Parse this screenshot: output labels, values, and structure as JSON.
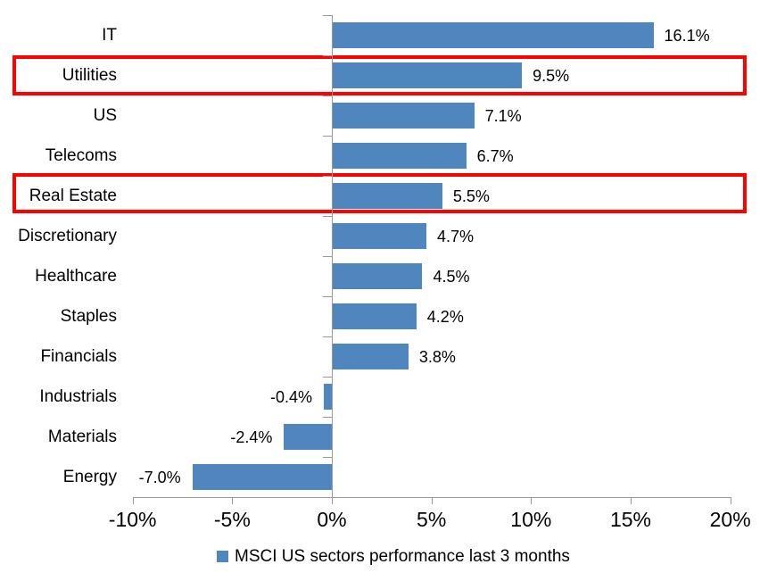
{
  "chart_data": {
    "type": "bar",
    "orientation": "horizontal",
    "title": "",
    "categories": [
      "IT",
      "Utilities",
      "US",
      "Telecoms",
      "Real Estate",
      "Discretionary",
      "Healthcare",
      "Staples",
      "Financials",
      "Industrials",
      "Materials",
      "Energy"
    ],
    "values": [
      16.1,
      9.5,
      7.1,
      6.7,
      5.5,
      4.7,
      4.5,
      4.2,
      3.8,
      -0.4,
      -2.4,
      -7.0
    ],
    "value_labels": [
      "16.1%",
      "9.5%",
      "7.1%",
      "6.7%",
      "5.5%",
      "4.7%",
      "4.5%",
      "4.2%",
      "3.8%",
      "-0.4%",
      "-2.4%",
      "-7.0%"
    ],
    "highlighted_categories": [
      "Utilities",
      "Real Estate"
    ],
    "highlight_indices": [
      1,
      4
    ],
    "x_axis": {
      "min": -10,
      "max": 20,
      "tick_labels": [
        "-10%",
        "-5%",
        "0%",
        "5%",
        "10%",
        "15%",
        "20%"
      ],
      "tick_values": [
        -10,
        -5,
        0,
        5,
        10,
        15,
        20
      ]
    },
    "legend": {
      "label": "MSCI US sectors performance last 3 months",
      "position": "bottom"
    },
    "colors": {
      "bar": "#4E86BD",
      "highlight_border": "#FF0000",
      "axis": "#999999",
      "text": "#000000",
      "background": "#FFFFFF"
    },
    "grid": false
  }
}
